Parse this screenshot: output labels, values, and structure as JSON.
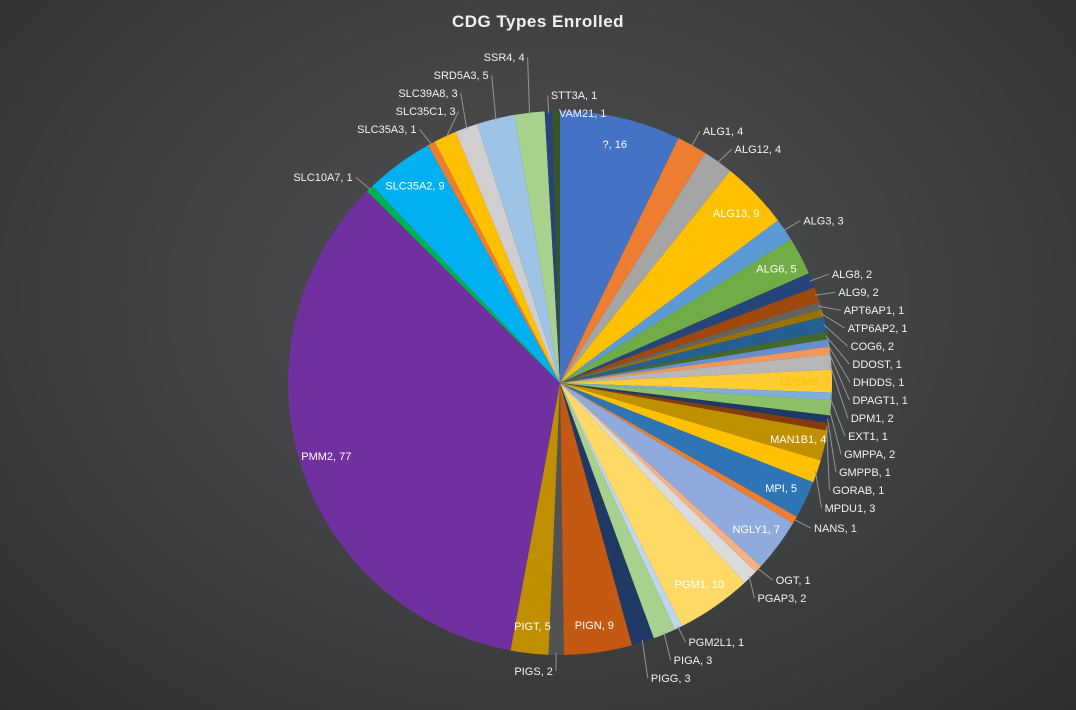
{
  "chart_data": {
    "type": "pie",
    "title": "CDG Types Enrolled",
    "legend_position": "none",
    "label_format": "name, value",
    "total": 223,
    "label_color_inside": "#FFFFFF",
    "label_color_outside": "#F2F2F2",
    "leader_line_color": "#9E9E9E",
    "slices": [
      {
        "name": "?",
        "value": 16,
        "color": "#4472C4",
        "label_inside": true
      },
      {
        "name": "ALG1",
        "value": 4,
        "color": "#ED7D31",
        "label_inside": false
      },
      {
        "name": "ALG12",
        "value": 4,
        "color": "#A5A5A5",
        "label_inside": false
      },
      {
        "name": "ALG13",
        "value": 9,
        "color": "#FFC000",
        "label_inside": true
      },
      {
        "name": "ALG3",
        "value": 3,
        "color": "#5B9BD5",
        "label_inside": false
      },
      {
        "name": "ALG6",
        "value": 5,
        "color": "#70AD47",
        "label_inside": true
      },
      {
        "name": "ALG8",
        "value": 2,
        "color": "#264478",
        "label_inside": false
      },
      {
        "name": "ALG9",
        "value": 2,
        "color": "#9E480E",
        "label_inside": false
      },
      {
        "name": "APT6AP1",
        "value": 1,
        "color": "#636363",
        "label_inside": false
      },
      {
        "name": "ATP6AP2",
        "value": 1,
        "color": "#997300",
        "label_inside": false
      },
      {
        "name": "COG6",
        "value": 2,
        "color": "#255E91",
        "label_inside": false
      },
      {
        "name": "DDOST",
        "value": 1,
        "color": "#43682B",
        "label_inside": false
      },
      {
        "name": "DHDDS",
        "value": 1,
        "color": "#698ED0",
        "label_inside": false
      },
      {
        "name": "DPAGT1",
        "value": 1,
        "color": "#F1975A",
        "label_inside": false
      },
      {
        "name": "DPM1",
        "value": 2,
        "color": "#B7B7B7",
        "label_inside": false
      },
      {
        "name": "EDEM3",
        "value": 3,
        "color": "#FFCD33",
        "label_inside": true,
        "label_color": "#FFC000"
      },
      {
        "name": "EXT1",
        "value": 1,
        "color": "#7CAFDD",
        "label_inside": false
      },
      {
        "name": "GMPPA",
        "value": 2,
        "color": "#8CC168",
        "label_inside": false
      },
      {
        "name": "GMPPB",
        "value": 1,
        "color": "#203864",
        "label_inside": false
      },
      {
        "name": "GORAB",
        "value": 1,
        "color": "#843C0C",
        "label_inside": false
      },
      {
        "name": "MAN1B1",
        "value": 4,
        "color": "#BF9000",
        "label_inside": true
      },
      {
        "name": "MPDU1",
        "value": 3,
        "color": "#FFC000",
        "label_inside": false
      },
      {
        "name": "MPI",
        "value": 5,
        "color": "#2E75B6",
        "label_inside": true
      },
      {
        "name": "NANS",
        "value": 1,
        "color": "#ED7D31",
        "label_inside": false
      },
      {
        "name": "NGLY1",
        "value": 7,
        "color": "#8FAADC",
        "label_inside": true
      },
      {
        "name": "OGT",
        "value": 1,
        "color": "#F4B183",
        "label_inside": false
      },
      {
        "name": "PGAP3",
        "value": 2,
        "color": "#DBDBDB",
        "label_inside": false
      },
      {
        "name": "PGM1",
        "value": 10,
        "color": "#FFD966",
        "label_inside": true
      },
      {
        "name": "PGM2L1",
        "value": 1,
        "color": "#BDD7EE",
        "label_inside": false
      },
      {
        "name": "PIGA",
        "value": 3,
        "color": "#A9D18E",
        "label_inside": false
      },
      {
        "name": "PIGG",
        "value": 3,
        "color": "#1F3864",
        "label_inside": false
      },
      {
        "name": "PIGN",
        "value": 9,
        "color": "#C45911",
        "label_inside": true
      },
      {
        "name": "PIGS",
        "value": 2,
        "color": "#525252",
        "label_inside": false
      },
      {
        "name": "PIGT",
        "value": 5,
        "color": "#BF8F00",
        "label_inside": true
      },
      {
        "name": "PMM2",
        "value": 77,
        "color": "#7030A0",
        "label_inside": true
      },
      {
        "name": "SLC10A7",
        "value": 1,
        "color": "#00B050",
        "label_inside": false
      },
      {
        "name": "SLC35A2",
        "value": 9,
        "color": "#00B0F0",
        "label_inside": true
      },
      {
        "name": "SLC35A3",
        "value": 1,
        "color": "#ED7D31",
        "label_inside": false
      },
      {
        "name": "SLC35C1",
        "value": 3,
        "color": "#FFC000",
        "label_inside": false
      },
      {
        "name": "SLC39A8",
        "value": 3,
        "color": "#D0CECE",
        "label_inside": false
      },
      {
        "name": "SRD5A3",
        "value": 5,
        "color": "#9DC3E6",
        "label_inside": false
      },
      {
        "name": "SSR4",
        "value": 4,
        "color": "#A9D18E",
        "label_inside": false
      },
      {
        "name": "STT3A",
        "value": 1,
        "color": "#264478",
        "label_inside": false
      },
      {
        "name": "VAM21",
        "value": 1,
        "color": "#375623",
        "label_inside": false
      }
    ]
  }
}
